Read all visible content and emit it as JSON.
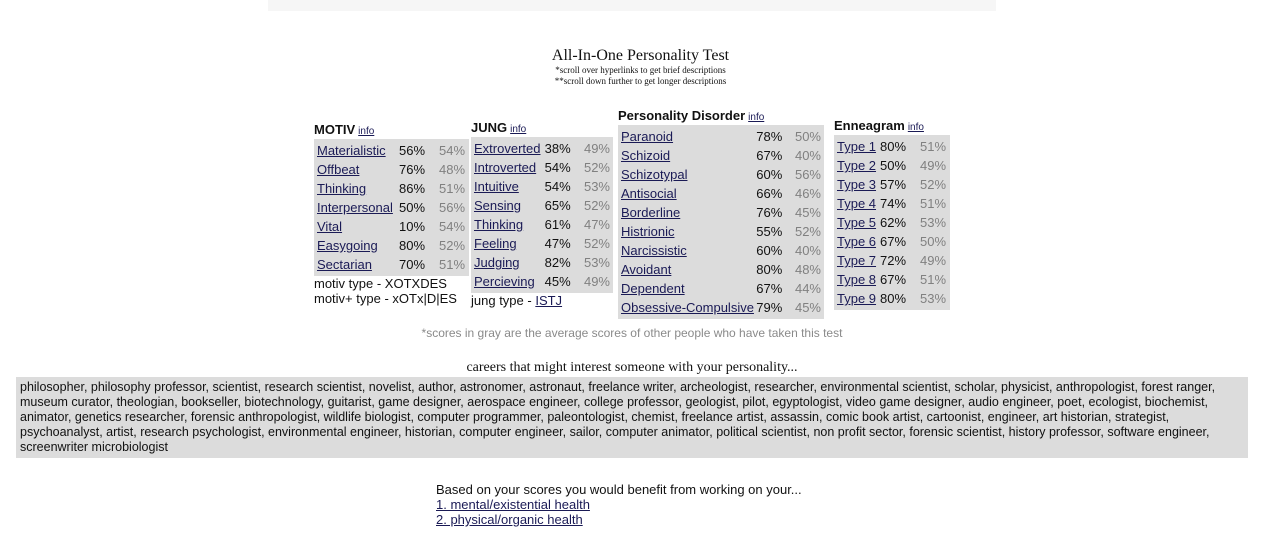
{
  "header": {
    "title": "All-In-One Personality Test",
    "note1": "*scroll over hyperlinks to get brief descriptions",
    "note2": "**scroll down further to get longer descriptions"
  },
  "motiv": {
    "title": "MOTIV",
    "info": "info",
    "rows": [
      {
        "name": "Materialistic",
        "score": "56%",
        "avg": "54%"
      },
      {
        "name": "Offbeat",
        "score": "76%",
        "avg": "48%"
      },
      {
        "name": "Thinking",
        "score": "86%",
        "avg": "51%"
      },
      {
        "name": "Interpersonal",
        "score": "50%",
        "avg": "56%"
      },
      {
        "name": "Vital",
        "score": "10%",
        "avg": "54%"
      },
      {
        "name": "Easygoing",
        "score": "80%",
        "avg": "52%"
      },
      {
        "name": "Sectarian",
        "score": "70%",
        "avg": "51%"
      }
    ],
    "type_line": "motiv type - XOTXDES",
    "type_plus_line": "motiv+ type - xOTx|D|ES"
  },
  "jung": {
    "title": "JUNG",
    "info": "info",
    "rows": [
      {
        "name": "Extroverted",
        "score": "38%",
        "avg": "49%"
      },
      {
        "name": "Introverted",
        "score": "54%",
        "avg": "52%"
      },
      {
        "name": "Intuitive",
        "score": "54%",
        "avg": "53%"
      },
      {
        "name": "Sensing",
        "score": "65%",
        "avg": "52%"
      },
      {
        "name": "Thinking",
        "score": "61%",
        "avg": "47%"
      },
      {
        "name": "Feeling",
        "score": "47%",
        "avg": "52%"
      },
      {
        "name": "Judging",
        "score": "82%",
        "avg": "53%"
      },
      {
        "name": "Percieving",
        "score": "45%",
        "avg": "49%"
      }
    ],
    "type_prefix": "jung type - ",
    "type_value": "ISTJ"
  },
  "pd": {
    "title": "Personality Disorder",
    "info": "info",
    "rows": [
      {
        "name": "Paranoid",
        "score": "78%",
        "avg": "50%"
      },
      {
        "name": "Schizoid",
        "score": "67%",
        "avg": "40%"
      },
      {
        "name": "Schizotypal",
        "score": "60%",
        "avg": "56%"
      },
      {
        "name": "Antisocial",
        "score": "66%",
        "avg": "46%"
      },
      {
        "name": "Borderline",
        "score": "76%",
        "avg": "45%"
      },
      {
        "name": "Histrionic",
        "score": "55%",
        "avg": "52%"
      },
      {
        "name": "Narcissistic",
        "score": "60%",
        "avg": "40%"
      },
      {
        "name": "Avoidant",
        "score": "80%",
        "avg": "48%"
      },
      {
        "name": "Dependent",
        "score": "67%",
        "avg": "44%"
      },
      {
        "name": "Obsessive-Compulsive",
        "score": "79%",
        "avg": "45%"
      }
    ]
  },
  "enneagram": {
    "title": "Enneagram",
    "info": "info",
    "rows": [
      {
        "name": "Type 1",
        "score": "80%",
        "avg": "51%"
      },
      {
        "name": "Type 2",
        "score": "50%",
        "avg": "49%"
      },
      {
        "name": "Type 3",
        "score": "57%",
        "avg": "52%"
      },
      {
        "name": "Type 4",
        "score": "74%",
        "avg": "51%"
      },
      {
        "name": "Type 5",
        "score": "62%",
        "avg": "53%"
      },
      {
        "name": "Type 6",
        "score": "67%",
        "avg": "50%"
      },
      {
        "name": "Type 7",
        "score": "72%",
        "avg": "49%"
      },
      {
        "name": "Type 8",
        "score": "67%",
        "avg": "51%"
      },
      {
        "name": "Type 9",
        "score": "80%",
        "avg": "53%"
      }
    ]
  },
  "gray_note": "*scores in gray are the average scores of other people who have taken this test",
  "careers": {
    "heading": "careers that might interest someone with your personality...",
    "text": "philosopher, philosophy professor, scientist, research scientist, novelist, author, astronomer, astronaut, freelance writer, archeologist, researcher, environmental scientist, scholar, physicist, anthropologist, forest ranger, museum curator, theologian, bookseller, biotechnology, guitarist, game designer, aerospace engineer, college professor, geologist, pilot, egyptologist, video game designer, audio engineer, poet, ecologist, biochemist, animator, genetics researcher, forensic anthropologist, wildlife biologist, computer programmer, paleontologist, chemist, freelance artist, assassin, comic book artist, cartoonist, engineer, art historian, strategist, psychoanalyst, artist, research psychologist, environmental engineer, historian, computer engineer, sailor, computer animator, political scientist, non profit sector, forensic scientist, history professor, software engineer, screenwriter microbiologist"
  },
  "benefit": {
    "heading": "Based on your scores you would benefit from working on your...",
    "links": [
      "1. mental/existential health",
      "2. physical/organic health"
    ]
  }
}
